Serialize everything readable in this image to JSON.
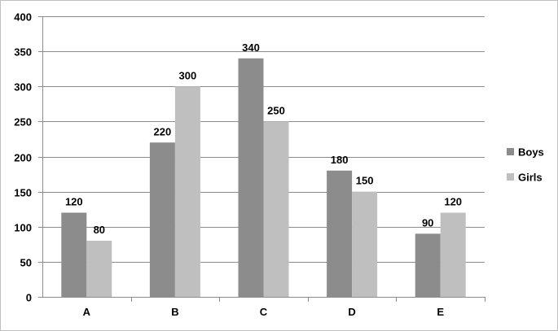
{
  "chart_data": {
    "type": "bar",
    "categories": [
      "A",
      "B",
      "C",
      "D",
      "E"
    ],
    "series": [
      {
        "name": "Boys",
        "values": [
          120,
          220,
          340,
          180,
          90
        ],
        "color": "#8c8c8c"
      },
      {
        "name": "Girls",
        "values": [
          80,
          300,
          250,
          150,
          120
        ],
        "color": "#bfbfbf"
      }
    ],
    "y_ticks": [
      0,
      50,
      100,
      150,
      200,
      250,
      300,
      350,
      400
    ],
    "ylim": [
      0,
      400
    ],
    "grid": true,
    "data_labels": true,
    "legend_position": "right"
  }
}
